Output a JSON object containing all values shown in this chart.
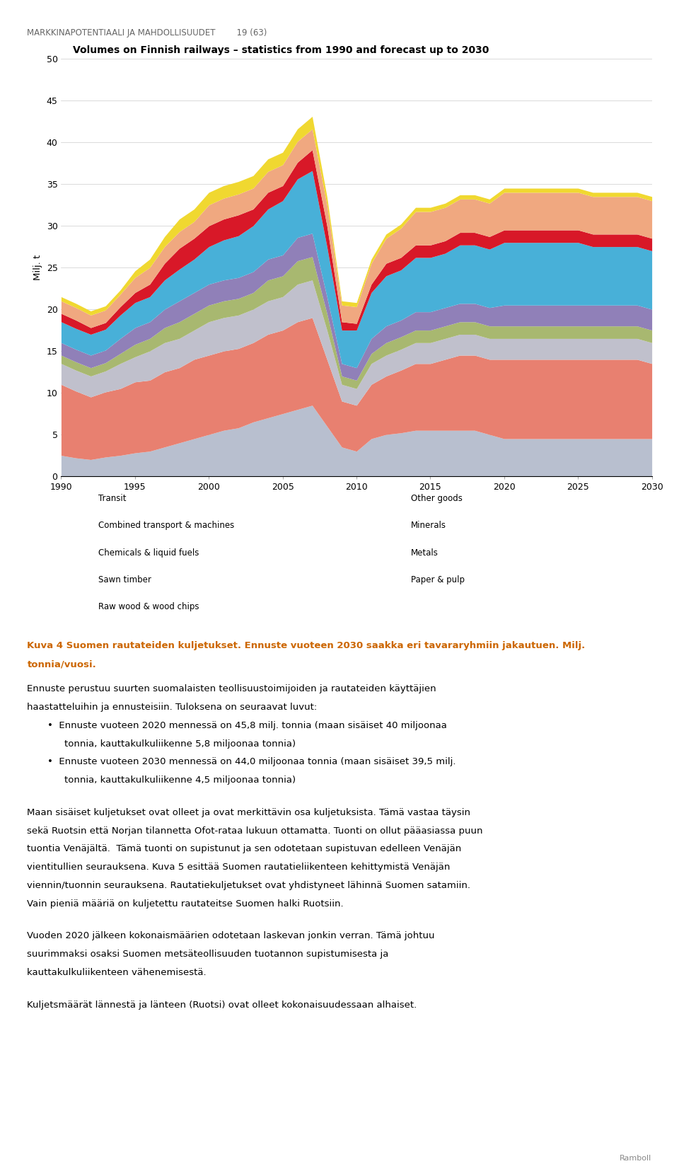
{
  "title": "Volumes on Finnish railways – statistics from 1990 and forecast up to 2030",
  "ylabel": "Milj. t",
  "ylim": [
    0,
    50
  ],
  "yticks": [
    0,
    5,
    10,
    15,
    20,
    25,
    30,
    35,
    40,
    45,
    50
  ],
  "header_text": "MARKKINAPOTENTIAALI JA MAHDOLLISUUDET        19 (63)",
  "footer_text": "Ramboll",
  "caption_line1": "Kuva 4 Suomen rautateiden kuljetukset. Ennuste vuoteen 2030 saakka eri tavararyhmiin jakautuen. Milj.",
  "caption_line2": "tonnia/vuosi.",
  "years": [
    1990,
    1991,
    1992,
    1993,
    1994,
    1995,
    1996,
    1997,
    1998,
    1999,
    2000,
    2001,
    2002,
    2003,
    2004,
    2005,
    2006,
    2007,
    2008,
    2009,
    2010,
    2011,
    2012,
    2013,
    2014,
    2015,
    2016,
    2017,
    2018,
    2019,
    2020,
    2021,
    2022,
    2023,
    2024,
    2025,
    2026,
    2027,
    2028,
    2029,
    2030
  ],
  "series": {
    "Transit": [
      2.5,
      2.2,
      2.0,
      2.3,
      2.5,
      2.8,
      3.0,
      3.5,
      4.0,
      4.5,
      5.0,
      5.5,
      5.8,
      6.5,
      7.0,
      7.5,
      8.0,
      8.5,
      6.0,
      3.5,
      3.0,
      4.5,
      5.0,
      5.2,
      5.5,
      5.5,
      5.5,
      5.5,
      5.5,
      5.0,
      4.5,
      4.5,
      4.5,
      4.5,
      4.5,
      4.5,
      4.5,
      4.5,
      4.5,
      4.5,
      4.5
    ],
    "Paper & pulp": [
      8.5,
      8.0,
      7.5,
      7.8,
      8.0,
      8.5,
      8.5,
      9.0,
      9.0,
      9.5,
      9.5,
      9.5,
      9.5,
      9.5,
      10.0,
      10.0,
      10.5,
      10.5,
      8.0,
      5.5,
      5.5,
      6.5,
      7.0,
      7.5,
      8.0,
      8.0,
      8.5,
      9.0,
      9.0,
      9.0,
      9.5,
      9.5,
      9.5,
      9.5,
      9.5,
      9.5,
      9.5,
      9.5,
      9.5,
      9.5,
      9.0
    ],
    "Raw wood & wood chips": [
      2.5,
      2.5,
      2.5,
      2.5,
      3.0,
      3.0,
      3.5,
      3.5,
      3.5,
      3.5,
      4.0,
      4.0,
      4.0,
      4.0,
      4.0,
      4.0,
      4.5,
      4.5,
      3.5,
      2.0,
      2.0,
      2.5,
      2.5,
      2.5,
      2.5,
      2.5,
      2.5,
      2.5,
      2.5,
      2.5,
      2.5,
      2.5,
      2.5,
      2.5,
      2.5,
      2.5,
      2.5,
      2.5,
      2.5,
      2.5,
      2.5
    ],
    "Sawn timber": [
      1.0,
      1.0,
      1.0,
      1.0,
      1.2,
      1.5,
      1.5,
      1.8,
      2.0,
      2.0,
      2.0,
      2.0,
      2.0,
      2.0,
      2.5,
      2.5,
      2.8,
      2.8,
      2.0,
      1.0,
      1.0,
      1.2,
      1.5,
      1.5,
      1.5,
      1.5,
      1.5,
      1.5,
      1.5,
      1.5,
      1.5,
      1.5,
      1.5,
      1.5,
      1.5,
      1.5,
      1.5,
      1.5,
      1.5,
      1.5,
      1.5
    ],
    "Metals": [
      1.5,
      1.5,
      1.5,
      1.5,
      1.8,
      2.0,
      2.0,
      2.2,
      2.5,
      2.5,
      2.5,
      2.5,
      2.5,
      2.5,
      2.5,
      2.5,
      2.8,
      2.8,
      2.0,
      1.5,
      1.5,
      1.8,
      2.0,
      2.0,
      2.2,
      2.2,
      2.2,
      2.2,
      2.2,
      2.2,
      2.5,
      2.5,
      2.5,
      2.5,
      2.5,
      2.5,
      2.5,
      2.5,
      2.5,
      2.5,
      2.5
    ],
    "Chemicals & liquid fuels": [
      2.5,
      2.5,
      2.5,
      2.5,
      2.8,
      3.0,
      3.0,
      3.5,
      3.8,
      4.0,
      4.5,
      4.8,
      5.0,
      5.5,
      6.0,
      6.5,
      7.0,
      7.5,
      6.0,
      4.0,
      4.5,
      5.5,
      6.0,
      6.0,
      6.5,
      6.5,
      6.5,
      7.0,
      7.0,
      7.0,
      7.5,
      7.5,
      7.5,
      7.5,
      7.5,
      7.5,
      7.0,
      7.0,
      7.0,
      7.0,
      7.0
    ],
    "Combined transport & machines": [
      1.0,
      1.0,
      0.8,
      0.8,
      1.0,
      1.2,
      1.5,
      2.0,
      2.5,
      2.5,
      2.5,
      2.5,
      2.5,
      2.0,
      2.0,
      1.8,
      2.0,
      2.5,
      2.5,
      1.0,
      0.8,
      1.0,
      1.5,
      1.5,
      1.5,
      1.5,
      1.5,
      1.5,
      1.5,
      1.5,
      1.5,
      1.5,
      1.5,
      1.5,
      1.5,
      1.5,
      1.5,
      1.5,
      1.5,
      1.5,
      1.5
    ],
    "Minerals": [
      1.5,
      1.5,
      1.5,
      1.5,
      1.5,
      1.8,
      2.0,
      2.0,
      2.0,
      2.0,
      2.5,
      2.5,
      2.5,
      2.5,
      2.5,
      2.5,
      2.5,
      2.5,
      2.5,
      2.0,
      2.0,
      2.5,
      3.0,
      3.5,
      4.0,
      4.0,
      4.0,
      4.0,
      4.0,
      4.0,
      4.5,
      4.5,
      4.5,
      4.5,
      4.5,
      4.5,
      4.5,
      4.5,
      4.5,
      4.5,
      4.5
    ],
    "Other goods": [
      0.5,
      0.5,
      0.5,
      0.5,
      0.5,
      0.8,
      1.0,
      1.2,
      1.5,
      1.5,
      1.5,
      1.5,
      1.5,
      1.5,
      1.5,
      1.5,
      1.5,
      1.5,
      1.0,
      0.5,
      0.5,
      0.5,
      0.5,
      0.5,
      0.5,
      0.5,
      0.5,
      0.5,
      0.5,
      0.5,
      0.5,
      0.5,
      0.5,
      0.5,
      0.5,
      0.5,
      0.5,
      0.5,
      0.5,
      0.5,
      0.5
    ]
  },
  "stack_order": [
    "Transit",
    "Paper & pulp",
    "Raw wood & wood chips",
    "Sawn timber",
    "Metals",
    "Chemicals & liquid fuels",
    "Combined transport & machines",
    "Minerals",
    "Other goods"
  ],
  "colors_hex": {
    "Transit": "#b8bfcf",
    "Paper & pulp": "#e88070",
    "Raw wood & wood chips": "#c0c0cc",
    "Sawn timber": "#a8b870",
    "Metals": "#9080b8",
    "Chemicals & liquid fuels": "#48b0d8",
    "Combined transport & machines": "#d81828",
    "Minerals": "#f0a880",
    "Other goods": "#f0d830"
  },
  "col1_legend": [
    [
      "Transit",
      null
    ],
    [
      "Combined transport & machines",
      "#d81828"
    ],
    [
      "Chemicals & liquid fuels",
      "#48b0d8"
    ],
    [
      "Sawn timber",
      "#a8b870"
    ],
    [
      "Raw wood & wood chips",
      "#c0c0cc"
    ]
  ],
  "col2_legend": [
    [
      "Other goods",
      "#f0d830"
    ],
    [
      "Minerals",
      "#f0a880"
    ],
    [
      "Metals",
      "#9080b8"
    ],
    [
      "Paper & pulp",
      "#e88070"
    ]
  ]
}
